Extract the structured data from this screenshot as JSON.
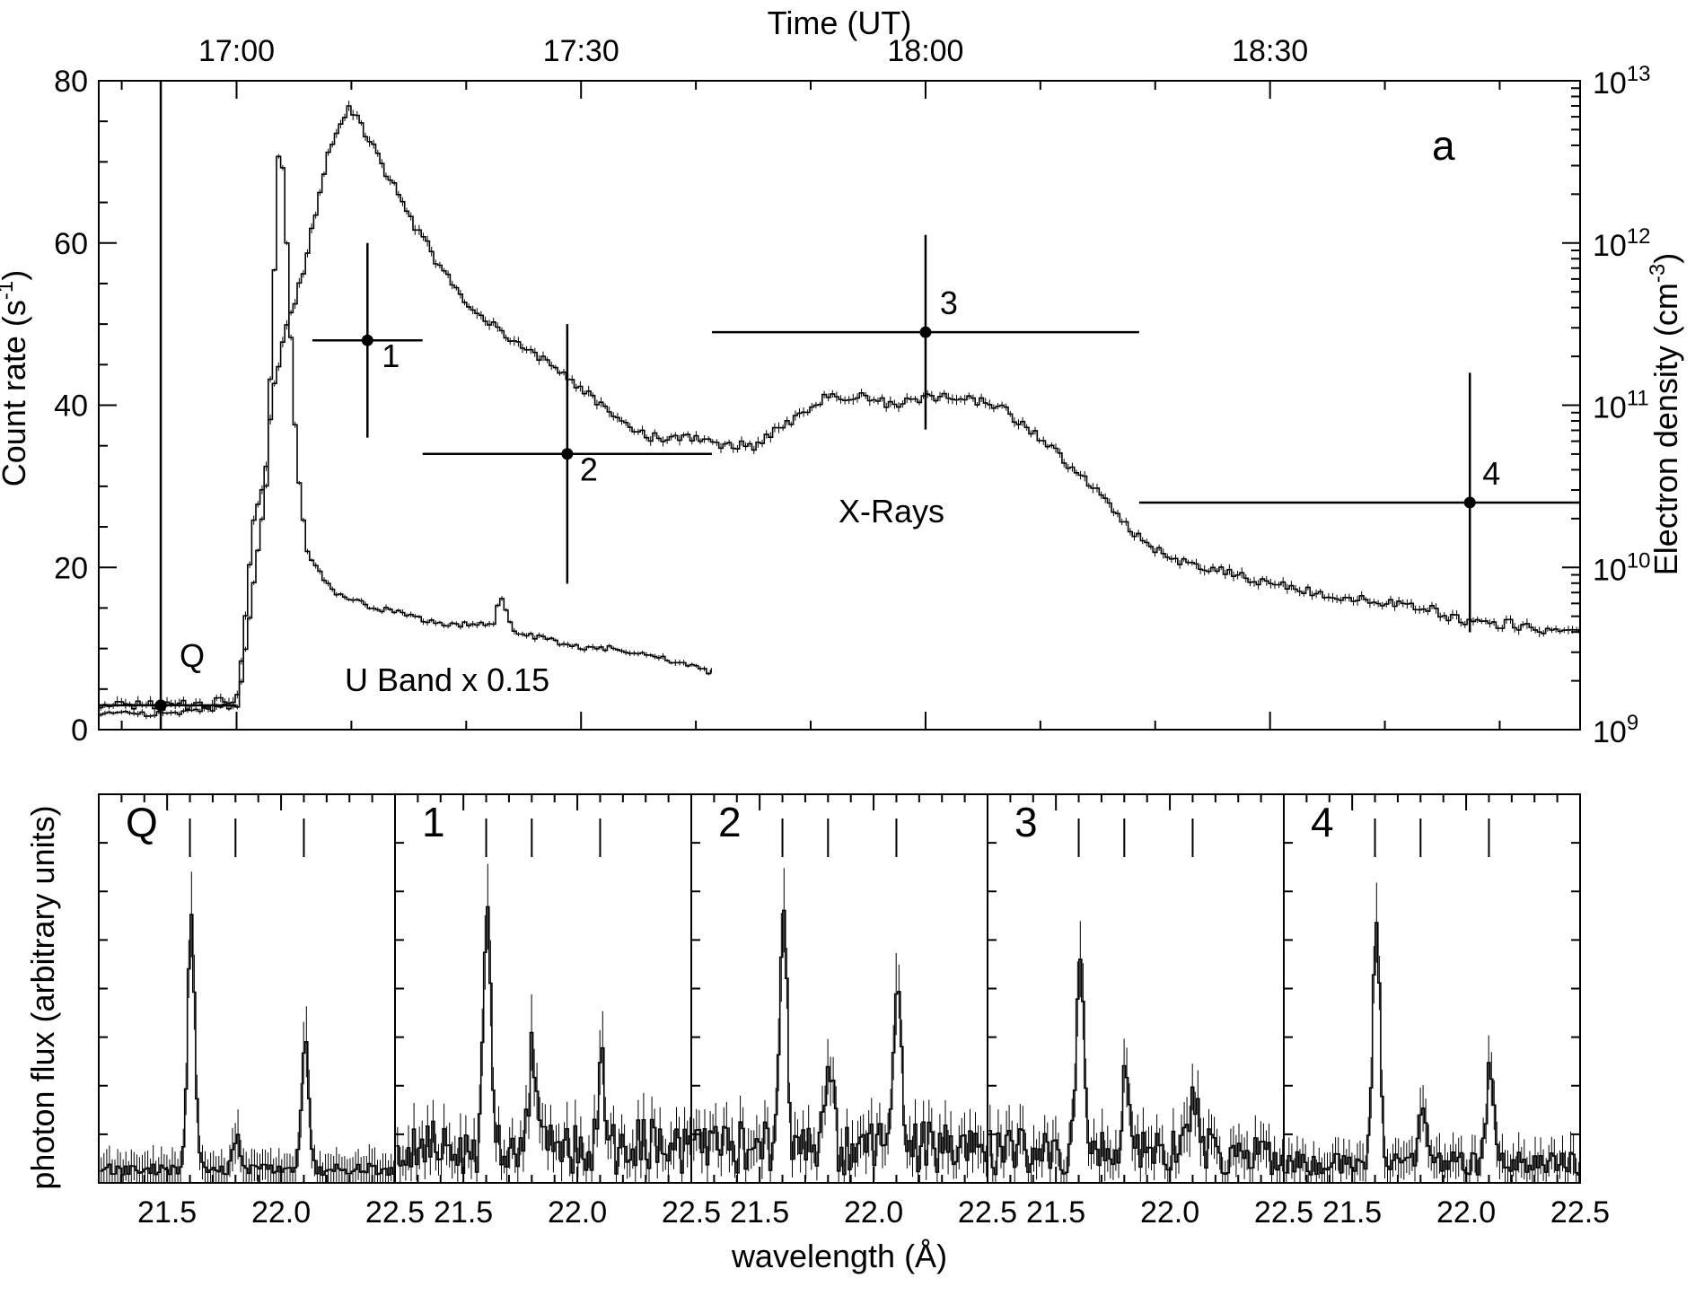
{
  "chart_data": [
    {
      "type": "line",
      "panel": "a",
      "panel_label": "a",
      "top_axis": {
        "title": "Time (UT)",
        "ticks": [
          {
            "t": 17.0,
            "label": "17:00"
          },
          {
            "t": 17.5,
            "label": "17:30"
          },
          {
            "t": 18.0,
            "label": "18:00"
          },
          {
            "t": 18.5,
            "label": "18:30"
          }
        ],
        "range_hours": [
          16.8,
          18.95
        ]
      },
      "left_axis": {
        "title": "Count rate (s",
        "title_sup": "-1",
        "title_end": ")",
        "ylim": [
          0,
          80
        ],
        "ticks": [
          {
            "v": 0,
            "label": "0"
          },
          {
            "v": 20,
            "label": "20"
          },
          {
            "v": 40,
            "label": "40"
          },
          {
            "v": 60,
            "label": "60"
          },
          {
            "v": 80,
            "label": "80"
          }
        ]
      },
      "right_axis": {
        "title": "Electron density (cm",
        "title_sup": "-3",
        "title_end": ")",
        "log_range": [
          9,
          13
        ],
        "ticks": [
          {
            "exp": 9,
            "base": "10",
            "sup": "9"
          },
          {
            "exp": 10,
            "base": "10",
            "sup": "10"
          },
          {
            "exp": 11,
            "base": "10",
            "sup": "11"
          },
          {
            "exp": 12,
            "base": "10",
            "sup": "12"
          },
          {
            "exp": 13,
            "base": "10",
            "sup": "13"
          }
        ]
      },
      "series": [
        {
          "name": "X-Rays",
          "label": "X-Rays",
          "t": [
            16.8,
            16.95,
            17.0,
            17.02,
            17.04,
            17.05,
            17.07,
            17.09,
            17.11,
            17.13,
            17.16,
            17.2,
            17.25,
            17.3,
            17.35,
            17.4,
            17.45,
            17.5,
            17.55,
            17.6,
            17.65,
            17.7,
            17.75,
            17.8,
            17.85,
            17.9,
            17.95,
            18.0,
            18.05,
            18.1,
            18.15,
            18.2,
            18.25,
            18.3,
            18.35,
            18.4,
            18.45,
            18.5,
            18.55,
            18.6,
            18.65,
            18.7,
            18.74,
            18.745,
            18.8,
            18.85,
            18.9,
            18.95
          ],
          "values": [
            3,
            3,
            4,
            25,
            32,
            42,
            50,
            55,
            63,
            71,
            77,
            71,
            63,
            56,
            51,
            48,
            45,
            42,
            38,
            36,
            36,
            35,
            35,
            38,
            41,
            41,
            40,
            41,
            41,
            40,
            37,
            33,
            29,
            24,
            21,
            20,
            19,
            18,
            17,
            16,
            16,
            15,
            15,
            14,
            13,
            13,
            12,
            12
          ]
        },
        {
          "name": "U Band x 0.15",
          "label": "U Band x 0.15",
          "t": [
            16.8,
            16.9,
            17.0,
            17.04,
            17.06,
            17.07,
            17.08,
            17.09,
            17.1,
            17.12,
            17.14,
            17.16,
            17.2,
            17.25,
            17.3,
            17.37,
            17.38,
            17.4,
            17.45,
            17.5,
            17.55,
            17.6,
            17.65,
            17.69
          ],
          "values": [
            2,
            2,
            3,
            30,
            75,
            60,
            40,
            28,
            22,
            19,
            17,
            16,
            15,
            14,
            13,
            13,
            17,
            12,
            11,
            10,
            10,
            9,
            8,
            7
          ]
        }
      ],
      "intervals": [
        {
          "label": "Q",
          "t": 16.89,
          "y_log": 9.15,
          "t_lo": 16.8,
          "t_hi": 17.0,
          "y_err": 4.3
        },
        {
          "label": "1",
          "t": 17.19,
          "y_log": 11.4,
          "t_lo": 17.11,
          "t_hi": 17.27,
          "y_err": 0.6
        },
        {
          "label": "2",
          "t": 17.48,
          "y_log": 10.7,
          "t_lo": 17.27,
          "t_hi": 17.69,
          "y_err": 0.8
        },
        {
          "label": "3",
          "t": 18.0,
          "y_log": 11.45,
          "t_lo": 17.69,
          "t_hi": 18.31,
          "y_err": 0.6
        },
        {
          "label": "4",
          "t": 18.79,
          "y_log": 10.4,
          "t_lo": 18.31,
          "t_hi": 18.95,
          "y_err": 0.8
        }
      ],
      "annotations": [
        {
          "text": "Q",
          "role": "interval-q"
        },
        {
          "text": "U Band x 0.15",
          "role": "series-label"
        },
        {
          "text": "X-Rays",
          "role": "series-label"
        }
      ]
    },
    {
      "type": "bar",
      "role": "spectra",
      "xlabel": "wavelength (Å)",
      "ylabel": "photon flux (arbitrary units)",
      "xlim": [
        21.2,
        22.5
      ],
      "x_ticks": [
        {
          "v": 21.5,
          "label": "21.5"
        },
        {
          "v": 22.0,
          "label": "22.0"
        },
        {
          "v": 22.5,
          "label": "22.5"
        }
      ],
      "line_markers": [
        21.6,
        21.8,
        22.1
      ],
      "panels": [
        {
          "label": "Q",
          "peaks": [
            {
              "x": 21.6,
              "h": 0.66
            },
            {
              "x": 21.8,
              "h": 0.08
            },
            {
              "x": 22.1,
              "h": 0.33
            }
          ],
          "noise": 0.03,
          "seed": 3
        },
        {
          "label": "1",
          "peaks": [
            {
              "x": 21.6,
              "h": 0.64
            },
            {
              "x": 21.8,
              "h": 0.25
            },
            {
              "x": 22.1,
              "h": 0.22
            }
          ],
          "noise": 0.15,
          "seed": 7
        },
        {
          "label": "2",
          "peaks": [
            {
              "x": 21.6,
              "h": 0.64
            },
            {
              "x": 21.8,
              "h": 0.22
            },
            {
              "x": 22.1,
              "h": 0.41
            }
          ],
          "noise": 0.14,
          "seed": 11
        },
        {
          "label": "3",
          "peaks": [
            {
              "x": 21.6,
              "h": 0.53
            },
            {
              "x": 21.8,
              "h": 0.2
            },
            {
              "x": 22.1,
              "h": 0.14
            }
          ],
          "noise": 0.12,
          "seed": 19
        },
        {
          "label": "4",
          "peaks": [
            {
              "x": 21.6,
              "h": 0.64
            },
            {
              "x": 21.8,
              "h": 0.14
            },
            {
              "x": 22.1,
              "h": 0.26
            }
          ],
          "noise": 0.06,
          "seed": 23
        }
      ]
    }
  ]
}
